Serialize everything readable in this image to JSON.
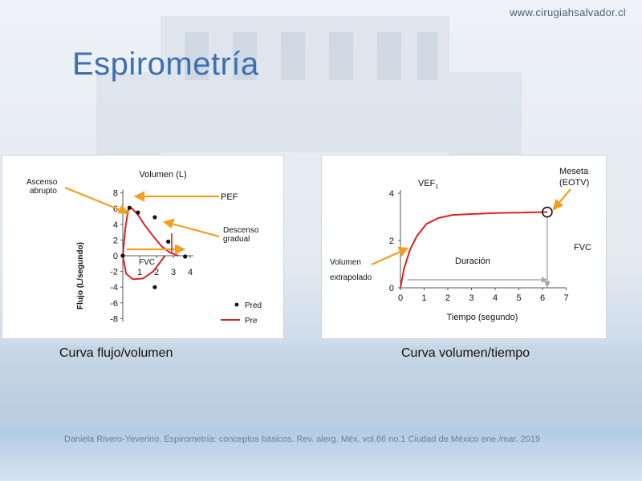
{
  "header": {
    "site_url": "www.cirugiahsalvador.cl"
  },
  "slide": {
    "title": "Espirometría",
    "caption_left": "Curva flujo/volumen",
    "caption_right": "Curva volumen/tiempo",
    "citation": "Daniela Rivero-Yeverino. Espirometría: conceptos básicos. Rev. alerg. Méx. vol.66 no.1 Ciudad de México ene./mar. 2019"
  },
  "colors": {
    "title": "#3c6fb3",
    "curve_red": "#e02020",
    "annotation_arrow": "#f0a020",
    "gray_arrow": "#a8a8a8"
  },
  "chart_data": [
    {
      "type": "scatter",
      "title": "Volumen (L)",
      "ylabel": "Flujo (L/segundo)",
      "xlim": [
        0,
        4
      ],
      "ylim": [
        -8,
        8
      ],
      "x_ticks": [
        1,
        2,
        3,
        4
      ],
      "y_ticks": [
        8,
        6,
        4,
        2,
        0,
        -2,
        -4,
        -6,
        -8
      ],
      "series": [
        {
          "name": "Pred",
          "kind": "points",
          "color": "#111111",
          "points": [
            [
              0.4,
              6.1
            ],
            [
              0.9,
              5.5
            ],
            [
              1.9,
              4.9
            ],
            [
              2.7,
              1.8
            ],
            [
              3.7,
              -0.1
            ],
            [
              1.9,
              -4.0
            ],
            [
              0,
              0
            ]
          ]
        },
        {
          "name": "Pre",
          "kind": "line",
          "color": "#e02020",
          "points": [
            [
              0,
              0
            ],
            [
              0.15,
              3.5
            ],
            [
              0.35,
              6.2
            ],
            [
              0.55,
              6.0
            ],
            [
              0.9,
              5.2
            ],
            [
              1.3,
              3.9
            ],
            [
              1.8,
              2.5
            ],
            [
              2.3,
              1.2
            ],
            [
              2.8,
              0.4
            ],
            [
              3.3,
              0
            ]
          ],
          "inspiratory_points": [
            [
              0,
              0
            ],
            [
              0.2,
              -2.3
            ],
            [
              0.6,
              -3.0
            ],
            [
              1.2,
              -2.9
            ],
            [
              1.8,
              -2.0
            ],
            [
              2.3,
              -0.6
            ],
            [
              2.5,
              0
            ]
          ]
        }
      ],
      "annotations": {
        "ascenso": "Ascenso\nabrupto",
        "pef": "PEF",
        "descenso": "Descenso\ngradual",
        "fvc": "FVC"
      },
      "legend": [
        "Pred",
        "Pre"
      ],
      "legend_position": "bottom-right"
    },
    {
      "type": "line",
      "xlabel": "Tiempo (segundo)",
      "xlim": [
        0,
        7
      ],
      "ylim": [
        0,
        4
      ],
      "x_ticks": [
        0,
        1,
        2,
        3,
        4,
        5,
        6,
        7
      ],
      "y_ticks": [
        0,
        2,
        4
      ],
      "series": [
        {
          "name": "Volumen",
          "color": "#e02020",
          "points": [
            [
              0,
              0
            ],
            [
              0.15,
              0.8
            ],
            [
              0.4,
              1.6
            ],
            [
              0.7,
              2.2
            ],
            [
              1.1,
              2.7
            ],
            [
              1.6,
              2.95
            ],
            [
              2.2,
              3.08
            ],
            [
              3,
              3.12
            ],
            [
              4,
              3.16
            ],
            [
              5,
              3.18
            ],
            [
              6,
              3.2
            ],
            [
              6.2,
              3.2
            ]
          ]
        }
      ],
      "annotations": {
        "vef1": "VEF",
        "vef1_sub": "1",
        "meseta": "Meseta\n(EOTV)",
        "fvc": "FVC",
        "duracion": "Duración",
        "volumen": "Volumen\nextrapolado"
      },
      "duration_range": [
        0.3,
        6.2
      ]
    }
  ]
}
